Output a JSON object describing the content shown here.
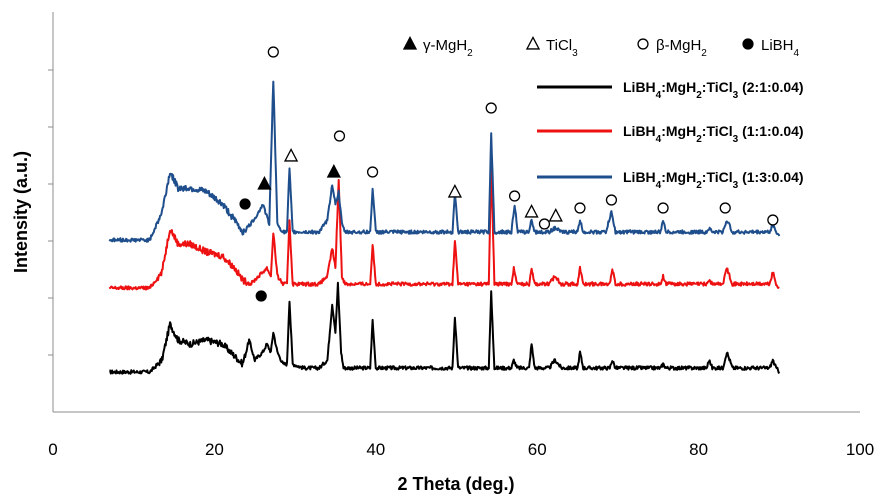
{
  "chart_data": {
    "type": "line",
    "xlabel": "2 Theta (deg.)",
    "ylabel": "Intensity (a.u.)",
    "xlim": [
      0,
      100
    ],
    "xticks": [
      "0",
      "20",
      "40",
      "60",
      "80",
      "100"
    ],
    "ylim": [
      0,
      100
    ],
    "yticks_labeled": false,
    "grid": false,
    "legend_position": "top-right",
    "series": [
      {
        "name_parts": [
          "LiBH",
          "4",
          ":MgH",
          "2",
          ":TiCl",
          "3",
          " (2:1:0.04)"
        ],
        "color": "#000000",
        "offset": 10,
        "points": [
          [
            7,
            10
          ],
          [
            12,
            10
          ],
          [
            13.5,
            13
          ],
          [
            14.5,
            22
          ],
          [
            15.5,
            18
          ],
          [
            17,
            17
          ],
          [
            19,
            18
          ],
          [
            21,
            17
          ],
          [
            22.5,
            14
          ],
          [
            23.5,
            12
          ],
          [
            24.3,
            18
          ],
          [
            25,
            13
          ],
          [
            26,
            15
          ],
          [
            26.5,
            17
          ],
          [
            27,
            15
          ],
          [
            27.3,
            20
          ],
          [
            27.8,
            15
          ],
          [
            28.5,
            12
          ],
          [
            29,
            12
          ],
          [
            29.3,
            28
          ],
          [
            29.7,
            12
          ],
          [
            31,
            11
          ],
          [
            33,
            11
          ],
          [
            34,
            13
          ],
          [
            34.6,
            27
          ],
          [
            35,
            20
          ],
          [
            35.3,
            32
          ],
          [
            35.7,
            15
          ],
          [
            36,
            11
          ],
          [
            39.3,
            11
          ],
          [
            39.6,
            23
          ],
          [
            40,
            11
          ],
          [
            49.5,
            11
          ],
          [
            49.8,
            24
          ],
          [
            50.2,
            11
          ],
          [
            54,
            11
          ],
          [
            54.3,
            30
          ],
          [
            54.7,
            11
          ],
          [
            56.8,
            11
          ],
          [
            57.1,
            13
          ],
          [
            57.5,
            11
          ],
          [
            59,
            11
          ],
          [
            59.3,
            17
          ],
          [
            59.7,
            11
          ],
          [
            61.5,
            11
          ],
          [
            62.2,
            13
          ],
          [
            63,
            11
          ],
          [
            65,
            11
          ],
          [
            65.3,
            15
          ],
          [
            65.7,
            11
          ],
          [
            69,
            11
          ],
          [
            69.3,
            13
          ],
          [
            69.7,
            11
          ],
          [
            75.3,
            11
          ],
          [
            75.6,
            12
          ],
          [
            76,
            11
          ],
          [
            81,
            11
          ],
          [
            81.3,
            13
          ],
          [
            81.7,
            11
          ],
          [
            83,
            11
          ],
          [
            83.5,
            15
          ],
          [
            84.2,
            11
          ],
          [
            88.8,
            11
          ],
          [
            89.2,
            13
          ],
          [
            89.6,
            11
          ],
          [
            90,
            10
          ]
        ]
      },
      {
        "name_parts": [
          "LiBH",
          "4",
          ":MgH",
          "2",
          ":TiCl",
          "3",
          " (1:1:0.04)"
        ],
        "color": "#ee1111",
        "offset": 31,
        "points": [
          [
            7,
            31
          ],
          [
            12,
            31
          ],
          [
            13.5,
            35
          ],
          [
            14.5,
            46
          ],
          [
            15.5,
            42
          ],
          [
            17,
            42
          ],
          [
            19,
            40
          ],
          [
            21,
            39
          ],
          [
            22.5,
            36
          ],
          [
            23.5,
            33
          ],
          [
            24.5,
            32
          ],
          [
            25.5,
            34
          ],
          [
            26.5,
            36
          ],
          [
            27,
            34
          ],
          [
            27.3,
            45
          ],
          [
            27.8,
            34
          ],
          [
            28.5,
            32
          ],
          [
            29,
            32
          ],
          [
            29.3,
            48
          ],
          [
            29.7,
            32
          ],
          [
            31,
            32
          ],
          [
            33,
            32
          ],
          [
            34,
            34
          ],
          [
            34.6,
            41
          ],
          [
            35,
            36
          ],
          [
            35.4,
            58
          ],
          [
            35.8,
            34
          ],
          [
            36.2,
            32
          ],
          [
            39.3,
            32
          ],
          [
            39.6,
            42
          ],
          [
            40,
            32
          ],
          [
            49.5,
            32
          ],
          [
            49.8,
            43
          ],
          [
            50.2,
            32
          ],
          [
            54,
            32
          ],
          [
            54.3,
            62
          ],
          [
            54.7,
            32
          ],
          [
            56.8,
            32
          ],
          [
            57.1,
            36
          ],
          [
            57.5,
            32
          ],
          [
            59,
            32
          ],
          [
            59.3,
            36
          ],
          [
            59.7,
            32
          ],
          [
            61.5,
            32
          ],
          [
            62.2,
            34
          ],
          [
            63,
            32
          ],
          [
            65,
            32
          ],
          [
            65.3,
            36
          ],
          [
            65.7,
            32
          ],
          [
            69,
            32
          ],
          [
            69.3,
            36
          ],
          [
            69.7,
            32
          ],
          [
            75.3,
            32
          ],
          [
            75.6,
            34
          ],
          [
            76,
            32
          ],
          [
            81,
            32
          ],
          [
            81.3,
            33
          ],
          [
            81.7,
            32
          ],
          [
            83,
            32
          ],
          [
            83.5,
            36
          ],
          [
            84.2,
            32
          ],
          [
            88.8,
            32
          ],
          [
            89.2,
            35
          ],
          [
            89.6,
            32
          ],
          [
            90,
            31
          ]
        ]
      },
      {
        "name_parts": [
          "LiBH",
          "4",
          ":MgH",
          "2",
          ":TiCl",
          "3",
          " (1:3:0.04)"
        ],
        "color": "#1f4e8c",
        "offset": 43,
        "points": [
          [
            7,
            43
          ],
          [
            12,
            43
          ],
          [
            13.5,
            50
          ],
          [
            14.5,
            60
          ],
          [
            15.5,
            56
          ],
          [
            17,
            56
          ],
          [
            19,
            55
          ],
          [
            21,
            52
          ],
          [
            22.5,
            48
          ],
          [
            23.5,
            45
          ],
          [
            24.5,
            47
          ],
          [
            25.5,
            50
          ],
          [
            26,
            52
          ],
          [
            26.8,
            47
          ],
          [
            27.3,
            83
          ],
          [
            27.8,
            47
          ],
          [
            28.5,
            45
          ],
          [
            29,
            45
          ],
          [
            29.3,
            61
          ],
          [
            29.7,
            45
          ],
          [
            31,
            45
          ],
          [
            33,
            45
          ],
          [
            34,
            48
          ],
          [
            34.6,
            57
          ],
          [
            35,
            52
          ],
          [
            35.4,
            55
          ],
          [
            35.8,
            47
          ],
          [
            36.2,
            45
          ],
          [
            39.3,
            45
          ],
          [
            39.6,
            56
          ],
          [
            40,
            45
          ],
          [
            49.5,
            45
          ],
          [
            49.8,
            55
          ],
          [
            50.2,
            45
          ],
          [
            54,
            45
          ],
          [
            54.3,
            70
          ],
          [
            54.7,
            45
          ],
          [
            56.8,
            45
          ],
          [
            57.2,
            52
          ],
          [
            57.6,
            45
          ],
          [
            59,
            45
          ],
          [
            59.3,
            48
          ],
          [
            59.7,
            45
          ],
          [
            61.5,
            45
          ],
          [
            62.2,
            46
          ],
          [
            63,
            45
          ],
          [
            65,
            45
          ],
          [
            65.3,
            48
          ],
          [
            65.7,
            45
          ],
          [
            68.5,
            45
          ],
          [
            69.2,
            50
          ],
          [
            69.7,
            45
          ],
          [
            75.3,
            45
          ],
          [
            75.6,
            48
          ],
          [
            76,
            45
          ],
          [
            81,
            45
          ],
          [
            81.3,
            46
          ],
          [
            81.7,
            45
          ],
          [
            83,
            45
          ],
          [
            83.5,
            48
          ],
          [
            84.2,
            45
          ],
          [
            88.8,
            45
          ],
          [
            89.2,
            47
          ],
          [
            89.6,
            45
          ],
          [
            90,
            44
          ]
        ]
      }
    ],
    "phase_markers": [
      {
        "symbol": "filled-triangle",
        "x": 26.2,
        "y": 57
      },
      {
        "symbol": "filled-triangle",
        "x": 34.8,
        "y": 60
      },
      {
        "symbol": "open-triangle",
        "x": 29.5,
        "y": 64
      },
      {
        "symbol": "open-triangle",
        "x": 49.8,
        "y": 55
      },
      {
        "symbol": "open-triangle",
        "x": 59.3,
        "y": 50
      },
      {
        "symbol": "open-triangle",
        "x": 62.3,
        "y": 49
      },
      {
        "symbol": "open-circle",
        "x": 27.3,
        "y": 90
      },
      {
        "symbol": "open-circle",
        "x": 35.5,
        "y": 69
      },
      {
        "symbol": "open-circle",
        "x": 39.6,
        "y": 60
      },
      {
        "symbol": "open-circle",
        "x": 54.3,
        "y": 76
      },
      {
        "symbol": "open-circle",
        "x": 57.2,
        "y": 54
      },
      {
        "symbol": "open-circle",
        "x": 60.9,
        "y": 47
      },
      {
        "symbol": "open-circle",
        "x": 65.3,
        "y": 51
      },
      {
        "symbol": "open-circle",
        "x": 69.2,
        "y": 53
      },
      {
        "symbol": "open-circle",
        "x": 75.6,
        "y": 51
      },
      {
        "symbol": "open-circle",
        "x": 83.3,
        "y": 51
      },
      {
        "symbol": "open-circle",
        "x": 89.2,
        "y": 48
      },
      {
        "symbol": "filled-circle",
        "x": 23.8,
        "y": 52
      },
      {
        "symbol": "filled-circle",
        "x": 25.8,
        "y": 29
      }
    ],
    "marker_legend": [
      {
        "symbol": "filled-triangle",
        "label_parts": [
          "γ-MgH",
          "2"
        ]
      },
      {
        "symbol": "open-triangle",
        "label_parts": [
          "TiCl",
          "3"
        ]
      },
      {
        "symbol": "open-circle",
        "label_parts": [
          "β-MgH",
          "2"
        ]
      },
      {
        "symbol": "filled-circle",
        "label_parts": [
          "LiBH",
          "4"
        ]
      }
    ]
  }
}
